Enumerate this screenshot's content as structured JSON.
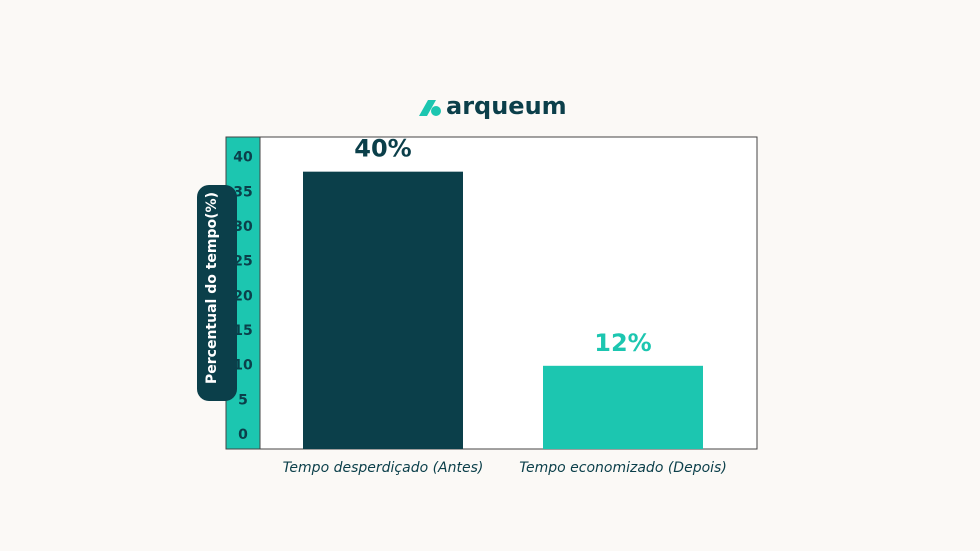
{
  "logo": "arqueum",
  "chart_data": {
    "type": "bar",
    "y_label": "Percentual do tempo(%)",
    "categories": [
      "Tempo desperdiçado (Antes)",
      "Tempo economizado (Depois)"
    ],
    "values": [
      40,
      12
    ],
    "value_labels": [
      "40%",
      "12%"
    ],
    "colors": [
      "#0b3f4a",
      "#1cc6b0"
    ],
    "ylim": [
      0,
      45
    ],
    "yticks": [
      0,
      5,
      10,
      15,
      20,
      25,
      30,
      35,
      40
    ]
  }
}
